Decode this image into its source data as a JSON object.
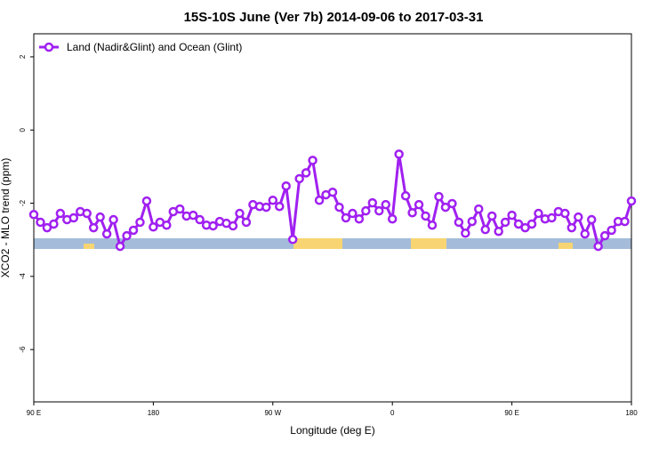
{
  "chart_data": {
    "type": "line",
    "title": "15S-10S June (Ver 7b)   2014-09-06 to 2017-03-31",
    "x_label": "Longitude (deg E)",
    "y_label": "XCO2 - MLO trend (ppm)",
    "x": [
      90,
      95,
      100,
      105,
      110,
      115,
      120,
      125,
      130,
      135,
      140,
      145,
      150,
      155,
      160,
      165,
      170,
      175,
      180,
      185,
      190,
      195,
      200,
      205,
      210,
      215,
      220,
      225,
      230,
      235,
      240,
      245,
      250,
      255,
      260,
      265,
      270,
      275,
      280,
      285,
      290,
      295,
      300,
      305,
      310,
      315,
      320,
      325,
      330,
      335,
      340,
      345,
      350,
      355,
      360,
      365,
      370,
      375,
      380,
      385,
      390,
      395,
      400,
      405,
      410,
      415,
      420,
      425,
      430,
      435,
      440,
      445,
      450,
      455,
      460,
      465,
      470,
      475,
      480,
      485,
      490,
      495,
      500,
      505,
      510,
      515,
      520,
      525,
      530,
      535,
      540
    ],
    "series": [
      {
        "name": "Land (Nadir&Glint) and Ocean (Glint)",
        "color": "#a020f0",
        "values": [
          -2.31,
          -2.52,
          -2.67,
          -2.57,
          -2.28,
          -2.45,
          -2.4,
          -2.23,
          -2.28,
          -2.67,
          -2.38,
          -2.84,
          -2.45,
          -3.18,
          -2.89,
          -2.74,
          -2.52,
          -1.94,
          -2.65,
          -2.52,
          -2.6,
          -2.23,
          -2.16,
          -2.35,
          -2.33,
          -2.45,
          -2.6,
          -2.62,
          -2.5,
          -2.55,
          -2.62,
          -2.28,
          -2.52,
          -2.04,
          -2.09,
          -2.11,
          -1.92,
          -2.09,
          -1.53,
          -2.99,
          -1.33,
          -1.17,
          -0.83,
          -1.92,
          -1.77,
          -1.7,
          -2.11,
          -2.4,
          -2.28,
          -2.43,
          -2.21,
          -1.99,
          -2.21,
          -2.04,
          -2.43,
          -0.66,
          -1.8,
          -2.26,
          -2.04,
          -2.35,
          -2.6,
          -1.82,
          -2.11,
          -2.01,
          -2.52,
          -2.82,
          -2.5,
          -2.16,
          -2.72,
          -2.35,
          -2.77,
          -2.52,
          -2.33,
          -2.57,
          -2.67,
          -2.57,
          -2.28,
          -2.43,
          -2.4,
          -2.23,
          -2.28,
          -2.67,
          -2.38,
          -2.84,
          -2.45,
          -3.18,
          -2.89,
          -2.74,
          -2.5,
          -2.5,
          -1.94
        ]
      }
    ],
    "xlim": [
      90,
      540
    ],
    "xticks": [
      {
        "value": 90,
        "label": "90 E"
      },
      {
        "value": 180,
        "label": "180"
      },
      {
        "value": 270,
        "label": "90 W"
      },
      {
        "value": 360,
        "label": "0"
      },
      {
        "value": 450,
        "label": "90 E"
      },
      {
        "value": 540,
        "label": "180"
      }
    ],
    "ylim": [
      -7.43,
      2.63
    ],
    "yticks": [
      2,
      0,
      -2,
      -4,
      -6
    ],
    "legend": "top-left"
  }
}
